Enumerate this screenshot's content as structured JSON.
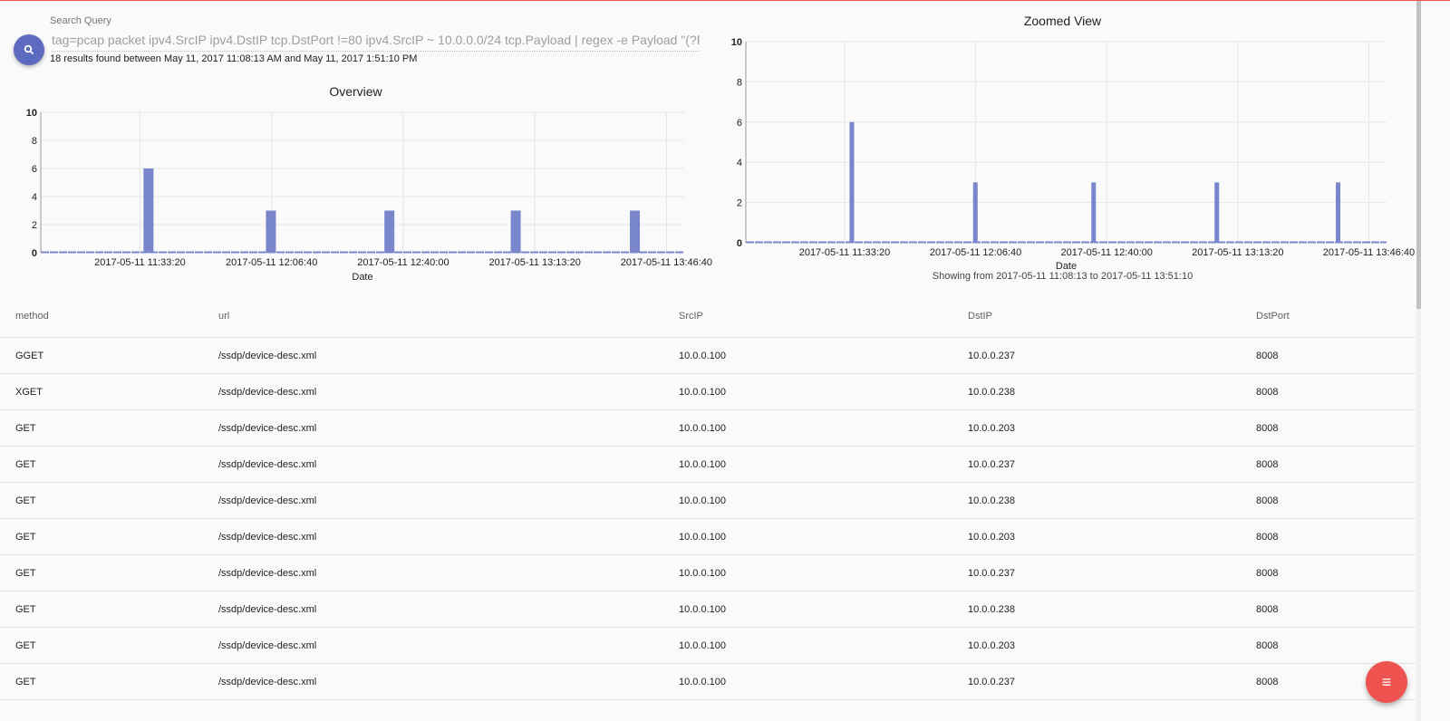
{
  "search": {
    "label": "Search Query",
    "query": "tag=pcap packet ipv4.SrcIP ipv4.DstIP tcp.DstPort !=80 ipv4.SrcIP ~ 10.0.0.0/24 tcp.Payload | regex -e Payload \"(?P<metho",
    "results_text": "18 results found between May 11, 2017 11:08:13 AM and May 11, 2017 1:51:10 PM",
    "button_icon": "search-icon"
  },
  "chart_data": [
    {
      "type": "bar",
      "title": "Overview",
      "xlabel": "Date",
      "ylabel": "",
      "xlim": [
        "2017-05-11 11:08:13",
        "2017-05-11 13:51:10"
      ],
      "ylim": [
        0,
        10
      ],
      "yticks": [
        "0",
        "2",
        "4",
        "6",
        "8",
        "10"
      ],
      "xticks": [
        "2017-05-11 11:33:20",
        "2017-05-11 12:06:40",
        "2017-05-11 12:40:00",
        "2017-05-11 13:13:20",
        "2017-05-11 13:46:40"
      ],
      "grid": true,
      "x": [
        "2017-05-11 11:35:30",
        "2017-05-11 12:06:30",
        "2017-05-11 12:36:30",
        "2017-05-11 13:08:30",
        "2017-05-11 13:38:40"
      ],
      "values": [
        6,
        3,
        3,
        3,
        3
      ],
      "color": "#7986cb"
    },
    {
      "type": "bar",
      "title": "Zoomed View",
      "xlabel": "Date",
      "ylabel": "",
      "subtitle": "Showing from 2017-05-11 11:08:13 to 2017-05-11 13:51:10",
      "xlim": [
        "2017-05-11 11:08:13",
        "2017-05-11 13:51:10"
      ],
      "ylim": [
        0,
        10
      ],
      "yticks": [
        "0",
        "2",
        "4",
        "6",
        "8",
        "10"
      ],
      "xticks": [
        "2017-05-11 11:33:20",
        "2017-05-11 12:06:40",
        "2017-05-11 12:40:00",
        "2017-05-11 13:13:20",
        "2017-05-11 13:46:40"
      ],
      "grid": true,
      "x": [
        "2017-05-11 11:35:10",
        "2017-05-11 12:06:35",
        "2017-05-11 12:36:40",
        "2017-05-11 13:08:00",
        "2017-05-11 13:38:50"
      ],
      "values": [
        6,
        3,
        3,
        3,
        3
      ],
      "color": "#7986cb"
    }
  ],
  "table": {
    "columns": [
      "method",
      "url",
      "SrcIP",
      "DstIP",
      "DstPort"
    ],
    "rows": [
      [
        "GGET",
        "/ssdp/device-desc.xml",
        "10.0.0.100",
        "10.0.0.237",
        "8008"
      ],
      [
        "XGET",
        "/ssdp/device-desc.xml",
        "10.0.0.100",
        "10.0.0.238",
        "8008"
      ],
      [
        "GET",
        "/ssdp/device-desc.xml",
        "10.0.0.100",
        "10.0.0.203",
        "8008"
      ],
      [
        "GET",
        "/ssdp/device-desc.xml",
        "10.0.0.100",
        "10.0.0.237",
        "8008"
      ],
      [
        "GET",
        "/ssdp/device-desc.xml",
        "10.0.0.100",
        "10.0.0.238",
        "8008"
      ],
      [
        "GET",
        "/ssdp/device-desc.xml",
        "10.0.0.100",
        "10.0.0.203",
        "8008"
      ],
      [
        "GET",
        "/ssdp/device-desc.xml",
        "10.0.0.100",
        "10.0.0.237",
        "8008"
      ],
      [
        "GET",
        "/ssdp/device-desc.xml",
        "10.0.0.100",
        "10.0.0.238",
        "8008"
      ],
      [
        "GET",
        "/ssdp/device-desc.xml",
        "10.0.0.100",
        "10.0.0.203",
        "8008"
      ],
      [
        "GET",
        "/ssdp/device-desc.xml",
        "10.0.0.100",
        "10.0.0.237",
        "8008"
      ]
    ]
  },
  "fab": {
    "icon": "menu-icon",
    "color": "#ef5350"
  },
  "colors": {
    "accent": "#5c6bc0",
    "bars": "#7986cb",
    "top_border": "#ef5350"
  }
}
